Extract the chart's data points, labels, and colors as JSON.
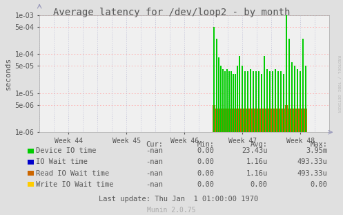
{
  "title": "Average latency for /dev/loop2 - by month",
  "ylabel": "seconds",
  "background_color": "#e0e0e0",
  "plot_bg_color": "#f0f0f0",
  "ylim_min": 1e-06,
  "ylim_max": 0.001,
  "xlim_min": 0,
  "xlim_max": 420,
  "week_tick_positions": [
    42,
    126,
    210,
    294,
    378
  ],
  "week_labels": [
    "Week 44",
    "Week 45",
    "Week 46",
    "Week 47",
    "Week 48"
  ],
  "green_x": [
    253,
    257,
    260,
    263,
    266,
    269,
    272,
    275,
    278,
    281,
    284,
    287,
    290,
    294,
    298,
    302,
    306,
    310,
    314,
    318,
    322,
    326,
    330,
    334,
    338,
    342,
    346,
    350,
    354,
    358,
    362,
    366,
    370,
    374,
    378,
    382,
    386
  ],
  "green_y": [
    0.0005,
    0.00025,
    8e-05,
    5e-05,
    4e-05,
    3.5e-05,
    4e-05,
    3.5e-05,
    3.5e-05,
    3e-05,
    3e-05,
    5e-05,
    9e-05,
    5e-05,
    3.5e-05,
    3.5e-05,
    4e-05,
    3.5e-05,
    3.5e-05,
    3.5e-05,
    3e-05,
    9e-05,
    4e-05,
    3.5e-05,
    3.5e-05,
    4e-05,
    3.5e-05,
    3.5e-05,
    3e-05,
    0.00395,
    0.00025,
    6e-05,
    5e-05,
    4e-05,
    3.5e-05,
    0.00025,
    5e-05
  ],
  "orange_x": [
    253,
    257,
    260,
    263,
    266,
    269,
    272,
    275,
    278,
    281,
    284,
    287,
    290,
    294,
    298,
    302,
    306,
    310,
    314,
    318,
    322,
    326,
    330,
    334,
    338,
    342,
    346,
    350,
    354,
    358,
    362,
    366,
    370,
    374,
    378,
    382,
    386
  ],
  "orange_y": [
    4e-06,
    3e-06,
    3e-06,
    3e-06,
    3e-06,
    3e-06,
    3e-06,
    3e-06,
    3e-06,
    3e-06,
    3e-06,
    3e-06,
    3e-06,
    3e-06,
    3e-06,
    3e-06,
    3e-06,
    3e-06,
    3e-06,
    3e-06,
    3e-06,
    3e-06,
    3e-06,
    3e-06,
    3e-06,
    3e-06,
    3e-06,
    3e-06,
    3e-06,
    4e-06,
    3e-06,
    3e-06,
    3e-06,
    3e-06,
    3e-06,
    3e-06,
    3e-06
  ],
  "legend": [
    {
      "label": "Device IO time",
      "color": "#00cc00"
    },
    {
      "label": "IO Wait time",
      "color": "#0000cc"
    },
    {
      "label": "Read IO Wait time",
      "color": "#cc6600"
    },
    {
      "label": "Write IO Wait time",
      "color": "#ffcc00"
    }
  ],
  "table_headers": [
    "Cur:",
    "Min:",
    "Avg:",
    "Max:"
  ],
  "table_rows": [
    [
      "-nan",
      "0.00",
      "23.43u",
      "3.95m"
    ],
    [
      "-nan",
      "0.00",
      "1.16u",
      "493.33u"
    ],
    [
      "-nan",
      "0.00",
      "1.16u",
      "493.33u"
    ],
    [
      "-nan",
      "0.00",
      "0.00",
      "0.00"
    ]
  ],
  "last_update": "Last update: Thu Jan  1 01:00:00 1970",
  "munin_version": "Munin 2.0.75",
  "rrdtool_text": "RRDTOOL / TOBI OETIKER",
  "title_fontsize": 10,
  "axis_fontsize": 7,
  "legend_fontsize": 7.5
}
